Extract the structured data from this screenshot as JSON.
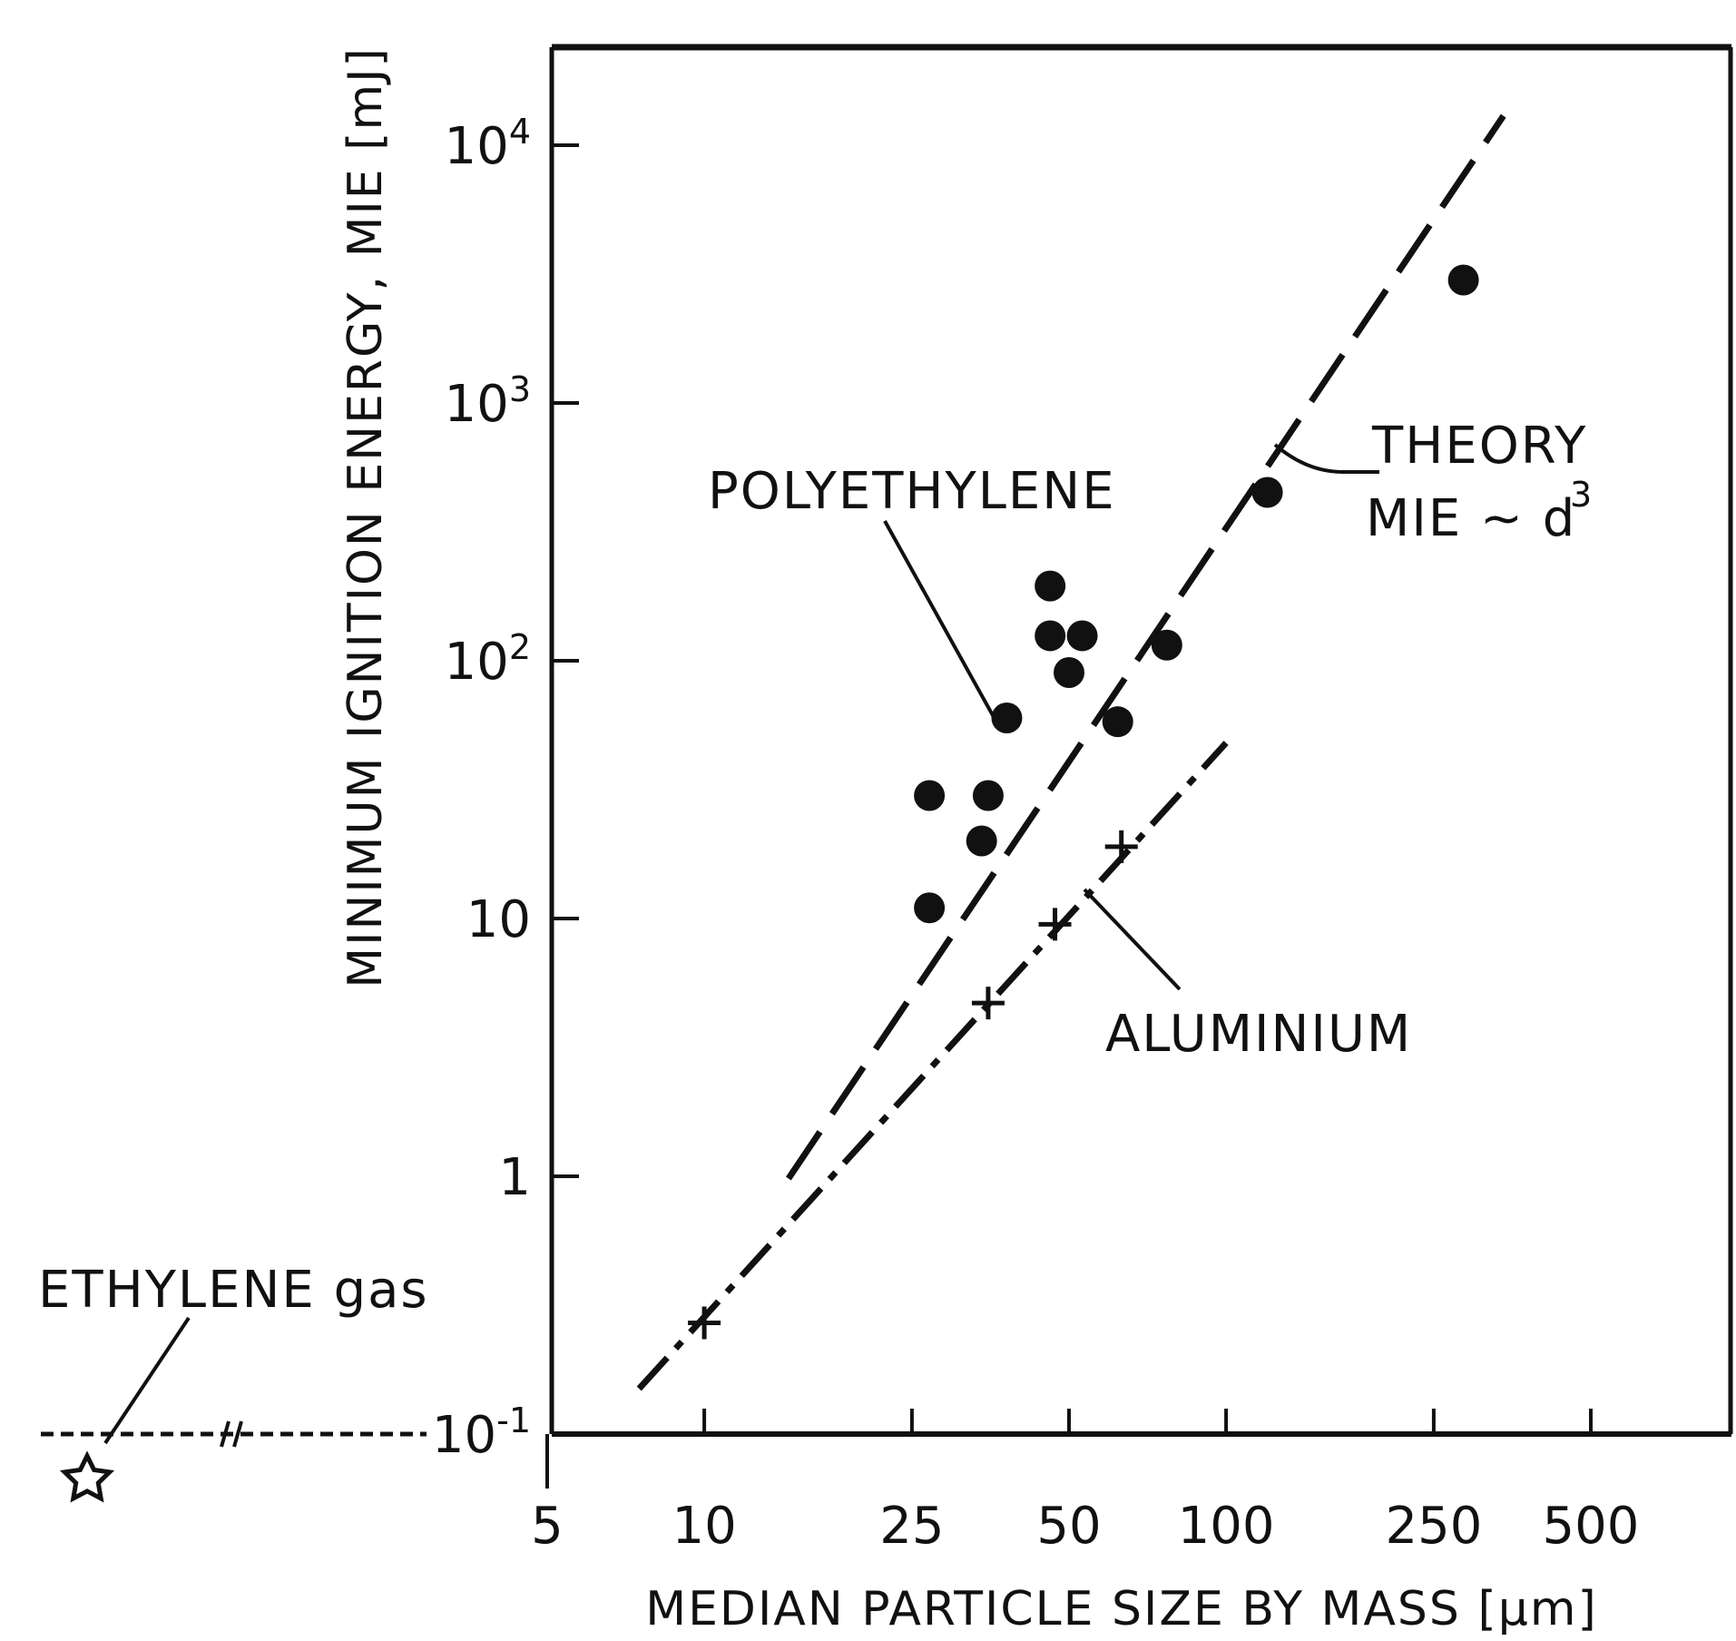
{
  "chart_data": {
    "type": "scatter",
    "title": "",
    "xlabel": "MEDIAN PARTICLE SIZE BY MASS [µm]",
    "ylabel": "MINIMUM IGNITION ENERGY, MIE  [mJ]",
    "x_scale": "log",
    "y_scale": "log",
    "xlim": [
      5,
      1000
    ],
    "ylim": [
      0.1,
      20000
    ],
    "x_tick_labels": [
      "5",
      "10",
      "25",
      "50",
      "100",
      "250",
      "500"
    ],
    "y_tick_labels": [
      "10^-1",
      "1",
      "10",
      "10^2",
      "10^3",
      "10^4"
    ],
    "grid": false,
    "series": [
      {
        "name": "POLYETHYLENE",
        "marker": "filled-circle",
        "points": [
          {
            "x": 27,
            "y": 11
          },
          {
            "x": 27,
            "y": 30
          },
          {
            "x": 34,
            "y": 20
          },
          {
            "x": 35,
            "y": 30
          },
          {
            "x": 38,
            "y": 60
          },
          {
            "x": 46,
            "y": 195
          },
          {
            "x": 46,
            "y": 125
          },
          {
            "x": 50,
            "y": 90
          },
          {
            "x": 53,
            "y": 125
          },
          {
            "x": 62,
            "y": 58
          },
          {
            "x": 77,
            "y": 115
          },
          {
            "x": 120,
            "y": 450
          },
          {
            "x": 285,
            "y": 3000
          }
        ]
      },
      {
        "name": "ALUMINIUM",
        "marker": "cross",
        "points": [
          {
            "x": 10,
            "y": 0.27
          },
          {
            "x": 35,
            "y": 4.7
          },
          {
            "x": 47,
            "y": 9.5
          },
          {
            "x": 63,
            "y": 19
          }
        ]
      }
    ],
    "lines": [
      {
        "name": "THEORY",
        "style": "long-dash",
        "points": [
          {
            "x": 14.5,
            "y": 0.98
          },
          {
            "x": 340,
            "y": 13000
          }
        ]
      },
      {
        "name": "ALUMINIUM",
        "style": "dash-dot",
        "points": [
          {
            "x": 7.5,
            "y": 0.15
          },
          {
            "x": 100,
            "y": 48
          }
        ]
      }
    ],
    "annotations": {
      "polyethylene": "POLYETHYLENE",
      "theory_line1": "THEORY",
      "theory_line2": "MIE ~ d",
      "theory_exponent": "3",
      "aluminium": "ALUMINIUM",
      "ethylene": "ETHYLENE gas"
    }
  }
}
